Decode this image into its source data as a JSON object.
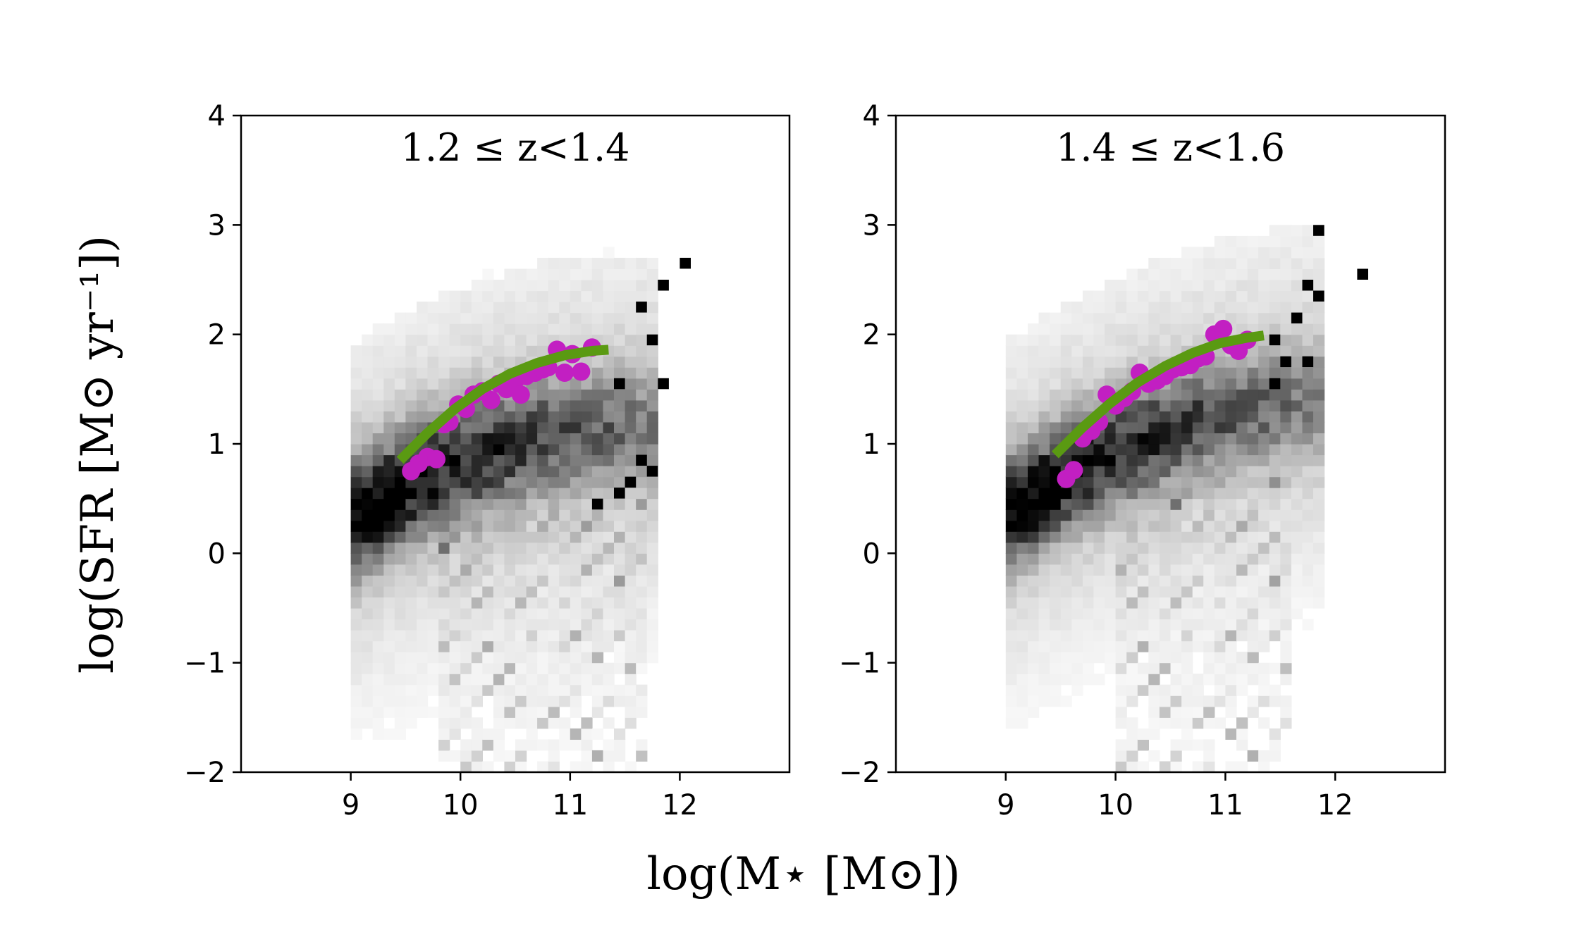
{
  "figure": {
    "ylabel": "log(SFR [M⊙ yr⁻¹])",
    "xlabel": "log(M⋆ [M⊙])",
    "colors": {
      "fit_line": "#5a9a12",
      "points": "#c21fc2",
      "density": "#000000"
    }
  },
  "chart_data": [
    {
      "type": "heatmap",
      "title": "1.2 ≤ z<1.4",
      "xlim": [
        8.0,
        13.0
      ],
      "ylim": [
        -2,
        4
      ],
      "xticks": [
        9,
        10,
        11,
        12
      ],
      "yticks": [
        -2,
        -1,
        0,
        1,
        2,
        3,
        4
      ],
      "xtick_labels": [
        "9",
        "10",
        "11",
        "12"
      ],
      "ytick_labels": [
        "−2",
        "−1",
        "0",
        "1",
        "2",
        "3",
        "4"
      ],
      "fit_line": {
        "x": [
          9.45,
          9.7,
          9.95,
          10.2,
          10.45,
          10.7,
          10.95,
          11.2,
          11.35
        ],
        "y": [
          0.85,
          1.1,
          1.32,
          1.5,
          1.64,
          1.74,
          1.81,
          1.85,
          1.86
        ]
      },
      "points": {
        "x": [
          9.55,
          9.62,
          9.7,
          9.78,
          9.85,
          9.9,
          9.98,
          10.05,
          10.12,
          10.2,
          10.28,
          10.35,
          10.42,
          10.5,
          10.55,
          10.6,
          10.68,
          10.75,
          10.8,
          10.88,
          10.95,
          11.02,
          11.1,
          11.2
        ],
        "y": [
          0.75,
          0.82,
          0.88,
          0.86,
          1.18,
          1.2,
          1.36,
          1.32,
          1.45,
          1.48,
          1.4,
          1.55,
          1.5,
          1.58,
          1.45,
          1.62,
          1.65,
          1.68,
          1.7,
          1.86,
          1.65,
          1.82,
          1.66,
          1.88
        ]
      },
      "density": {
        "main_sequence": {
          "x_range": [
            9.0,
            11.4
          ],
          "center_at_x9": 0.3,
          "slope": 0.65,
          "curvature": -0.25,
          "width": 0.35
        },
        "quenched": {
          "x_range": [
            9.8,
            11.7
          ],
          "offset": 1.4
        },
        "sparse_bins": [
          {
            "x": 12.05,
            "y": 2.65
          },
          {
            "x": 11.85,
            "y": 2.45
          },
          {
            "x": 11.65,
            "y": 2.25
          },
          {
            "x": 11.75,
            "y": 1.95
          },
          {
            "x": 11.85,
            "y": 1.55
          },
          {
            "x": 11.75,
            "y": 0.75
          },
          {
            "x": 11.65,
            "y": 0.85
          },
          {
            "x": 11.45,
            "y": 1.55
          },
          {
            "x": 11.55,
            "y": 0.65
          },
          {
            "x": 11.45,
            "y": 0.55
          },
          {
            "x": 11.25,
            "y": 0.45
          }
        ]
      }
    },
    {
      "type": "heatmap",
      "title": "1.4 ≤ z<1.6",
      "xlim": [
        8.0,
        13.0
      ],
      "ylim": [
        -2,
        4
      ],
      "xticks": [
        9,
        10,
        11,
        12
      ],
      "yticks": [
        -2,
        -1,
        0,
        1,
        2,
        3,
        4
      ],
      "xtick_labels": [
        "9",
        "10",
        "11",
        "12"
      ],
      "ytick_labels": [
        "−2",
        "−1",
        "0",
        "1",
        "2",
        "3",
        "4"
      ],
      "fit_line": {
        "x": [
          9.45,
          9.7,
          9.95,
          10.2,
          10.45,
          10.7,
          10.95,
          11.2,
          11.35
        ],
        "y": [
          0.9,
          1.15,
          1.37,
          1.56,
          1.71,
          1.83,
          1.92,
          1.97,
          1.99
        ]
      },
      "points": {
        "x": [
          9.55,
          9.62,
          9.7,
          9.78,
          9.85,
          9.92,
          10.0,
          10.08,
          10.15,
          10.22,
          10.3,
          10.38,
          10.45,
          10.52,
          10.6,
          10.68,
          10.75,
          10.82,
          10.9,
          10.98,
          11.05,
          11.12,
          11.2
        ],
        "y": [
          0.68,
          0.76,
          1.05,
          1.12,
          1.2,
          1.45,
          1.35,
          1.42,
          1.48,
          1.65,
          1.55,
          1.58,
          1.62,
          1.68,
          1.7,
          1.72,
          1.78,
          1.8,
          2.0,
          2.05,
          1.9,
          1.85,
          1.95
        ]
      },
      "density": {
        "main_sequence": {
          "x_range": [
            9.0,
            11.5
          ],
          "center_at_x9": 0.35,
          "slope": 0.68,
          "curvature": -0.22,
          "width": 0.33
        },
        "quenched": {
          "x_range": [
            10.0,
            11.6
          ],
          "offset": 1.45
        },
        "sparse_bins": [
          {
            "x": 11.85,
            "y": 2.95
          },
          {
            "x": 12.25,
            "y": 2.55
          },
          {
            "x": 11.75,
            "y": 2.45
          },
          {
            "x": 11.85,
            "y": 2.35
          },
          {
            "x": 11.75,
            "y": 1.75
          },
          {
            "x": 11.55,
            "y": 1.75
          },
          {
            "x": 11.45,
            "y": 1.55
          },
          {
            "x": 11.65,
            "y": 2.15
          },
          {
            "x": 11.45,
            "y": 1.95
          }
        ]
      }
    }
  ]
}
